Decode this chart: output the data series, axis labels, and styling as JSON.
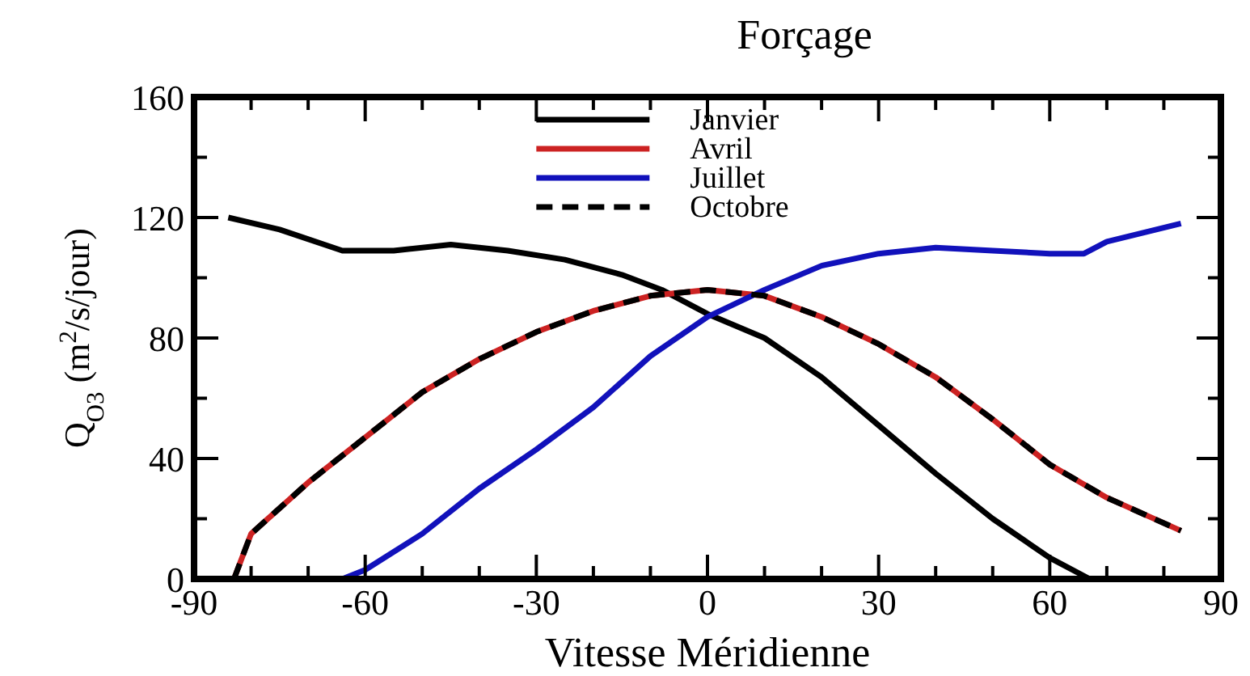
{
  "chart_data": {
    "type": "line",
    "title": "Forçage",
    "xlabel": "Vitesse Méridienne",
    "ylabel": "Q$_{O3}$  (m$^{2}$/s/jour)",
    "xlim": [
      -90,
      90
    ],
    "ylim": [
      0,
      160
    ],
    "xticks": [
      -90,
      {
        "value": -80,
        "label": null
      },
      {
        "value": -70,
        "label": null
      },
      -60,
      {
        "value": -50,
        "label": null
      },
      {
        "value": -40,
        "label": null
      },
      -30,
      {
        "value": -20,
        "label": null
      },
      {
        "value": -10,
        "label": null
      },
      0,
      {
        "value": 10,
        "label": null
      },
      {
        "value": 20,
        "label": null
      },
      30,
      {
        "value": 40,
        "label": null
      },
      {
        "value": 50,
        "label": null
      },
      60,
      {
        "value": 70,
        "label": null
      },
      {
        "value": 80,
        "label": null
      },
      90
    ],
    "yticks": [
      0,
      {
        "value": 20,
        "label": null
      },
      40,
      {
        "value": 60,
        "label": null
      },
      80,
      {
        "value": 100,
        "label": null
      },
      120,
      {
        "value": 140,
        "label": null
      },
      160
    ],
    "legend": "top",
    "grid": false,
    "series": [
      {
        "name": "Janvier",
        "color": "#000000",
        "x": [
          -84,
          -75,
          -64,
          -55,
          -45,
          -35,
          -25,
          -15,
          -8,
          0,
          10,
          20,
          30,
          40,
          50,
          60,
          67
        ],
        "values": [
          120,
          116,
          109,
          109,
          111,
          109,
          106,
          101,
          96,
          88,
          80,
          67,
          51,
          35,
          20,
          7,
          0
        ]
      },
      {
        "name": "Avril",
        "color": "#cc2222",
        "x": [
          -83,
          -80,
          -70,
          -60,
          -50,
          -40,
          -30,
          -20,
          -10,
          0,
          10,
          20,
          30,
          40,
          50,
          60,
          70,
          83
        ],
        "values": [
          0,
          15,
          32,
          47,
          62,
          73,
          82,
          89,
          94,
          96,
          94,
          87,
          78,
          67,
          53,
          38,
          27,
          16
        ]
      },
      {
        "name": "Juillet",
        "color": "#1111bb",
        "x": [
          -64,
          -60,
          -50,
          -40,
          -30,
          -20,
          -10,
          0,
          10,
          20,
          30,
          40,
          50,
          60,
          66,
          70,
          83
        ],
        "values": [
          0,
          3,
          15,
          30,
          43,
          57,
          74,
          87,
          96,
          104,
          108,
          110,
          109,
          108,
          108,
          112,
          118
        ]
      },
      {
        "name": "Octobre",
        "color": "#000000",
        "line_style": "dashed",
        "x": [
          -83,
          -80,
          -70,
          -60,
          -50,
          -40,
          -30,
          -20,
          -10,
          0,
          10,
          20,
          30,
          40,
          50,
          60,
          70,
          83
        ],
        "values": [
          0,
          15,
          32,
          47,
          62,
          73,
          82,
          89,
          94,
          96,
          94,
          87,
          78,
          67,
          53,
          38,
          27,
          16
        ]
      }
    ]
  }
}
